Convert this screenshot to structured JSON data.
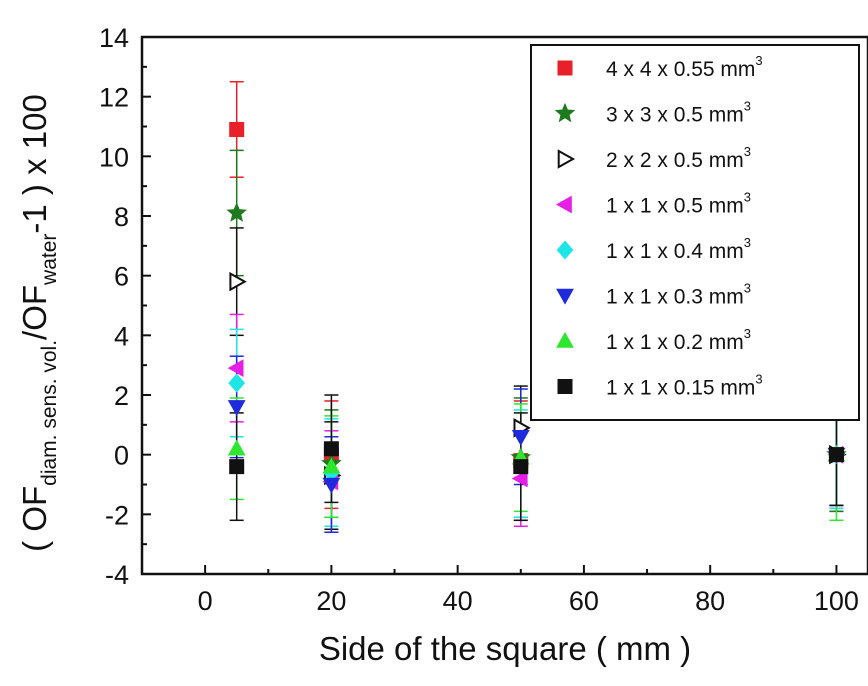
{
  "chart_data": {
    "type": "scatter",
    "title": "",
    "xlabel": "Side of the square  ( mm )",
    "ylabel": {
      "open": "( OF",
      "sub1": "diam. sens. vol.",
      "mid": "/OF",
      "sub2": "water",
      "close": "-1 )   x 100"
    },
    "xlim": [
      -10,
      105
    ],
    "ylim": [
      -4,
      14
    ],
    "xticks": [
      "0",
      "20",
      "40",
      "60",
      "80",
      "100"
    ],
    "yticks": [
      "-4",
      "-2",
      "0",
      "2",
      "4",
      "6",
      "8",
      "10",
      "12",
      "14"
    ],
    "grid": false,
    "legend_position": "top-right",
    "x": [
      5,
      20,
      50,
      100
    ],
    "series": [
      {
        "name": "4 x 4 x 0.55 mm",
        "unit_sup": "3",
        "marker": "square",
        "color": "#e8202a",
        "filled": true,
        "values": [
          10.9,
          0.0,
          -0.2,
          0.0
        ],
        "errors": [
          1.6,
          1.8,
          2.0,
          1.9
        ]
      },
      {
        "name": "3 x 3 x 0.5 mm",
        "unit_sup": "3",
        "marker": "star",
        "color": "#1e7a1e",
        "filled": true,
        "values": [
          8.1,
          -0.3,
          -0.1,
          0.0
        ],
        "errors": [
          2.1,
          1.8,
          2.0,
          1.9
        ]
      },
      {
        "name": "2 x 2 x 0.5 mm",
        "unit_sup": "3",
        "marker": "triangle-right",
        "color": "#111111",
        "filled": false,
        "values": [
          5.8,
          -0.7,
          0.9,
          0.0
        ],
        "errors": [
          1.8,
          1.8,
          1.4,
          1.7
        ]
      },
      {
        "name": "1 x 1 x 0.5 mm",
        "unit_sup": "3",
        "marker": "triangle-left",
        "color": "#e61ee6",
        "filled": true,
        "values": [
          2.9,
          -0.9,
          -0.8,
          0.0
        ],
        "errors": [
          1.8,
          1.7,
          1.6,
          1.8
        ]
      },
      {
        "name": "1 x 1 x 0.4 mm",
        "unit_sup": "3",
        "marker": "diamond",
        "color": "#1ee6e6",
        "filled": true,
        "values": [
          2.4,
          -0.6,
          -0.3,
          0.0
        ],
        "errors": [
          1.8,
          1.8,
          1.8,
          1.8
        ]
      },
      {
        "name": "1 x 1 x 0.3 mm",
        "unit_sup": "3",
        "marker": "triangle-down",
        "color": "#1e2adc",
        "filled": true,
        "values": [
          1.6,
          -1.0,
          0.6,
          0.0
        ],
        "errors": [
          1.7,
          1.6,
          1.6,
          1.7
        ]
      },
      {
        "name": "1 x 1 x 0.2 mm",
        "unit_sup": "3",
        "marker": "triangle-up",
        "color": "#2ee62e",
        "filled": true,
        "values": [
          0.2,
          -0.4,
          -0.1,
          0.0
        ],
        "errors": [
          1.7,
          1.7,
          1.8,
          2.2
        ]
      },
      {
        "name": "1 x 1 x 0.15 mm",
        "unit_sup": "3",
        "marker": "square",
        "color": "#111111",
        "filled": true,
        "values": [
          -0.4,
          0.2,
          -0.4,
          0.0
        ],
        "errors": [
          1.8,
          1.8,
          1.8,
          1.7
        ]
      }
    ]
  }
}
